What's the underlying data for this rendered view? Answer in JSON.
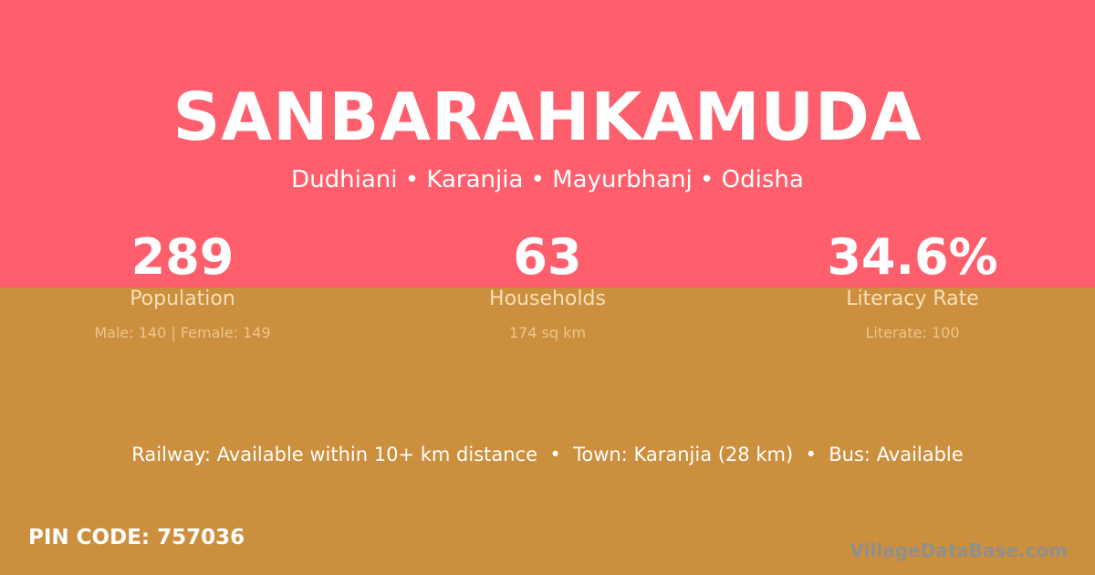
{
  "colors": {
    "top_bg": "#FF5E6C",
    "bottom_bg": "#CC8F3E"
  },
  "village": {
    "name": "SANBARAHKAMUDA",
    "location": "Dudhiani • Karanjia • Mayurbhanj • Odisha"
  },
  "stats": [
    {
      "value": "289",
      "label": "Population",
      "detail": "Male: 140 | Female: 149"
    },
    {
      "value": "63",
      "label": "Households",
      "detail": "174 sq km"
    },
    {
      "value": "34.6%",
      "label": "Literacy Rate",
      "detail": "Literate: 100"
    }
  ],
  "access": "Railway: Available within 10+ km distance  •  Town: Karanjia (28 km)  •  Bus: Available",
  "pin": "PIN CODE: 757036",
  "brand": "VillageDataBase.com"
}
